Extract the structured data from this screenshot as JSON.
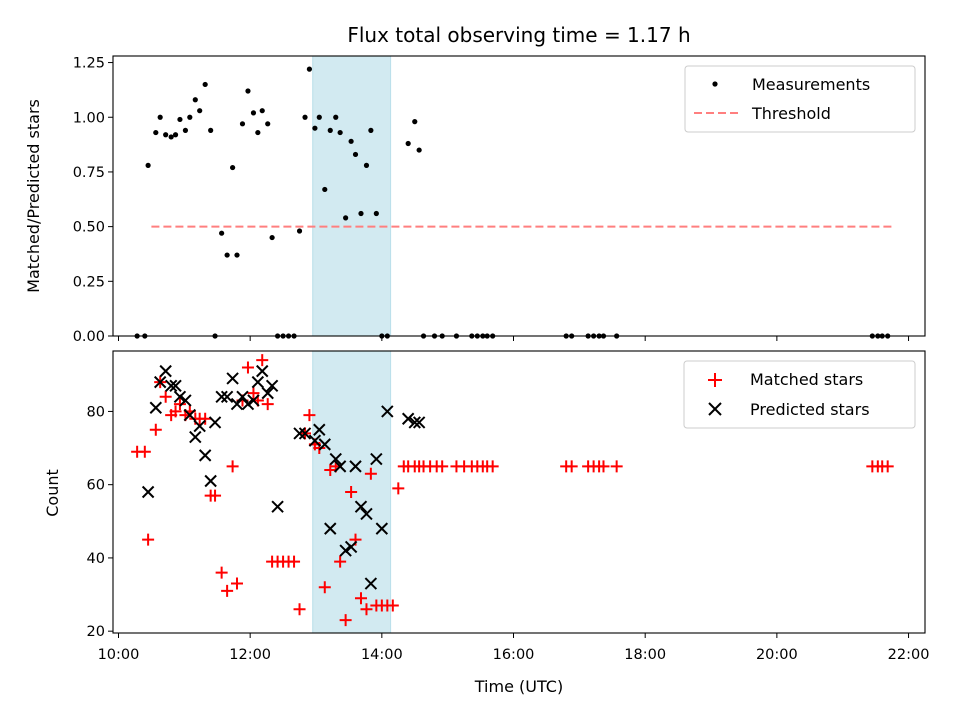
{
  "chart_data": [
    {
      "type": "scatter",
      "title": "Flux total observing time = 1.17 h",
      "ylabel": "Matched/Predicted stars",
      "xlim": [
        "09:55",
        "22:15"
      ],
      "ylim": [
        0,
        1.28
      ],
      "yticks": [
        "0.00",
        "0.25",
        "0.50",
        "0.75",
        "1.00",
        "1.25"
      ],
      "grid": false,
      "legend": {
        "position": "top-right",
        "entries": [
          {
            "label": "Measurements",
            "marker": "dot",
            "color": "#000000"
          },
          {
            "label": "Threshold",
            "marker": "dashed-line",
            "color": "#ff7f7f"
          }
        ]
      },
      "highlight_span": {
        "start": "12:57",
        "end": "14:08",
        "color": "#add8e6"
      },
      "threshold": {
        "value": 0.5,
        "x_start": "10:30",
        "x_end": "21:45"
      },
      "series": [
        {
          "name": "Measurements",
          "x": [
            "10:17",
            "10:24",
            "10:27",
            "10:34",
            "10:38",
            "10:43",
            "10:48",
            "10:52",
            "10:56",
            "11:01",
            "11:05",
            "11:10",
            "11:14",
            "11:19",
            "11:24",
            "11:28",
            "11:34",
            "11:39",
            "11:44",
            "11:48",
            "11:53",
            "11:58",
            "12:03",
            "12:07",
            "12:11",
            "12:16",
            "12:20",
            "12:25",
            "12:30",
            "12:35",
            "12:40",
            "12:45",
            "12:50",
            "12:54",
            "12:59",
            "13:03",
            "13:08",
            "13:13",
            "13:18",
            "13:22",
            "13:27",
            "13:32",
            "13:36",
            "13:41",
            "13:46",
            "13:50",
            "13:55",
            "14:00",
            "14:05",
            "14:24",
            "14:30",
            "14:34",
            "14:38",
            "14:48",
            "14:55",
            "15:08",
            "15:22",
            "15:27",
            "15:32",
            "15:36",
            "15:41",
            "16:48",
            "16:53",
            "17:08",
            "17:13",
            "17:18",
            "17:22",
            "17:34",
            "21:27",
            "21:32",
            "21:36",
            "21:41"
          ],
          "y": [
            0,
            0,
            0.78,
            0.93,
            1.0,
            0.92,
            0.91,
            0.92,
            0.99,
            0.94,
            1.0,
            1.08,
            1.03,
            1.15,
            0.94,
            0,
            0.47,
            0.37,
            0.77,
            0.37,
            0.97,
            1.12,
            1.02,
            0.93,
            1.03,
            0.97,
            0.45,
            0,
            0,
            0,
            0,
            0.48,
            1.0,
            1.22,
            0.95,
            1.0,
            0.67,
            0.94,
            1.0,
            0.93,
            0.54,
            0.89,
            0.83,
            0.56,
            0.78,
            0.94,
            0.56,
            0,
            0,
            0.88,
            0.98,
            0.85,
            0,
            0,
            0,
            0,
            0,
            0,
            0,
            0,
            0,
            0,
            0,
            0,
            0,
            0,
            0,
            0,
            0,
            0,
            0,
            0
          ]
        }
      ]
    },
    {
      "type": "scatter",
      "xlabel": "Time (UTC)",
      "ylabel": "Count",
      "xlim": [
        "09:55",
        "22:15"
      ],
      "xticks": [
        "10:00",
        "12:00",
        "14:00",
        "16:00",
        "18:00",
        "20:00",
        "22:00"
      ],
      "ylim": [
        19.5,
        96.5
      ],
      "yticks": [
        "20",
        "40",
        "60",
        "80"
      ],
      "grid": false,
      "legend": {
        "position": "top-right",
        "entries": [
          {
            "label": "Matched stars",
            "marker": "plus",
            "color": "#ff0000"
          },
          {
            "label": "Predicted stars",
            "marker": "x",
            "color": "#000000"
          }
        ]
      },
      "highlight_span": {
        "start": "12:57",
        "end": "14:08",
        "color": "#add8e6"
      },
      "series": [
        {
          "name": "Matched stars",
          "x": [
            "10:17",
            "10:24",
            "10:27",
            "10:34",
            "10:38",
            "10:43",
            "10:48",
            "10:52",
            "10:56",
            "11:01",
            "11:05",
            "11:10",
            "11:14",
            "11:19",
            "11:24",
            "11:28",
            "11:34",
            "11:39",
            "11:44",
            "11:48",
            "11:53",
            "11:58",
            "12:03",
            "12:07",
            "12:11",
            "12:16",
            "12:20",
            "12:25",
            "12:30",
            "12:35",
            "12:40",
            "12:45",
            "12:50",
            "12:54",
            "12:59",
            "13:03",
            "13:08",
            "13:13",
            "13:18",
            "13:22",
            "13:27",
            "13:32",
            "13:36",
            "13:41",
            "13:46",
            "13:50",
            "13:55",
            "14:00",
            "14:05",
            "14:10",
            "14:15",
            "14:20",
            "14:24",
            "14:30",
            "14:34",
            "14:38",
            "14:44",
            "14:50",
            "14:55",
            "15:08",
            "15:15",
            "15:22",
            "15:27",
            "15:32",
            "15:36",
            "15:41",
            "16:48",
            "16:53",
            "17:08",
            "17:13",
            "17:18",
            "17:22",
            "17:34",
            "21:27",
            "21:32",
            "21:36",
            "21:41"
          ],
          "y": [
            69,
            69,
            45,
            75,
            88,
            84,
            79,
            80,
            82,
            79,
            80,
            78,
            78,
            78,
            57,
            57,
            36,
            31,
            65,
            33,
            83,
            92,
            85,
            83,
            94,
            82,
            39,
            39,
            39,
            39,
            39,
            26,
            74,
            79,
            71,
            70,
            32,
            64,
            65,
            39,
            23,
            58,
            45,
            29,
            26,
            63,
            27,
            27,
            27,
            27,
            59,
            65,
            65,
            65,
            65,
            65,
            65,
            65,
            65,
            65,
            65,
            65,
            65,
            65,
            65,
            65,
            65,
            65,
            65,
            65,
            65,
            65,
            65,
            65,
            65,
            65,
            65
          ]
        },
        {
          "name": "Predicted stars",
          "x": [
            "10:27",
            "10:34",
            "10:38",
            "10:43",
            "10:48",
            "10:52",
            "10:56",
            "11:01",
            "11:05",
            "11:10",
            "11:14",
            "11:19",
            "11:24",
            "11:28",
            "11:34",
            "11:39",
            "11:44",
            "11:48",
            "11:53",
            "11:58",
            "12:03",
            "12:07",
            "12:11",
            "12:16",
            "12:20",
            "12:25",
            "12:45",
            "12:50",
            "12:59",
            "13:03",
            "13:08",
            "13:13",
            "13:18",
            "13:22",
            "13:27",
            "13:32",
            "13:36",
            "13:41",
            "13:46",
            "13:50",
            "13:55",
            "14:00",
            "14:05",
            "14:24",
            "14:30",
            "14:34"
          ],
          "y": [
            58,
            81,
            88,
            91,
            87,
            87,
            84,
            83,
            79,
            73,
            76,
            68,
            61,
            77,
            84,
            84,
            89,
            82,
            84,
            82,
            83,
            88,
            91,
            85,
            87,
            54,
            74,
            74,
            72,
            75,
            71,
            48,
            67,
            65,
            42,
            43,
            65,
            54,
            52,
            33,
            67,
            48,
            80,
            78,
            77,
            77
          ]
        }
      ]
    }
  ]
}
